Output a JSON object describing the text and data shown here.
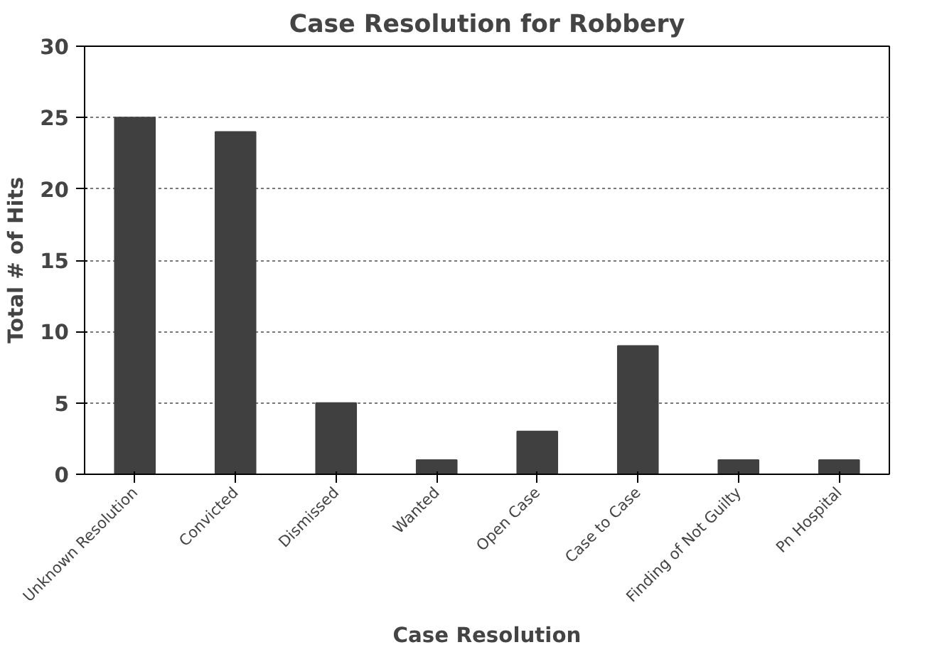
{
  "chart_data": {
    "type": "bar",
    "title": "Case Resolution for Robbery",
    "xlabel": "Case Resolution",
    "ylabel": "Total # of Hits",
    "categories": [
      "Unknown Resolution",
      "Convicted",
      "Dismissed",
      "Wanted",
      "Open Case",
      "Case to Case",
      "Finding of Not Guilty",
      "Pn Hospital"
    ],
    "values": [
      25,
      24,
      5,
      1,
      3,
      9,
      1,
      1
    ],
    "color": "#404040",
    "ylim": [
      0,
      30
    ],
    "yticks": [
      0,
      5,
      10,
      15,
      20,
      25,
      30
    ],
    "grid": "y"
  }
}
